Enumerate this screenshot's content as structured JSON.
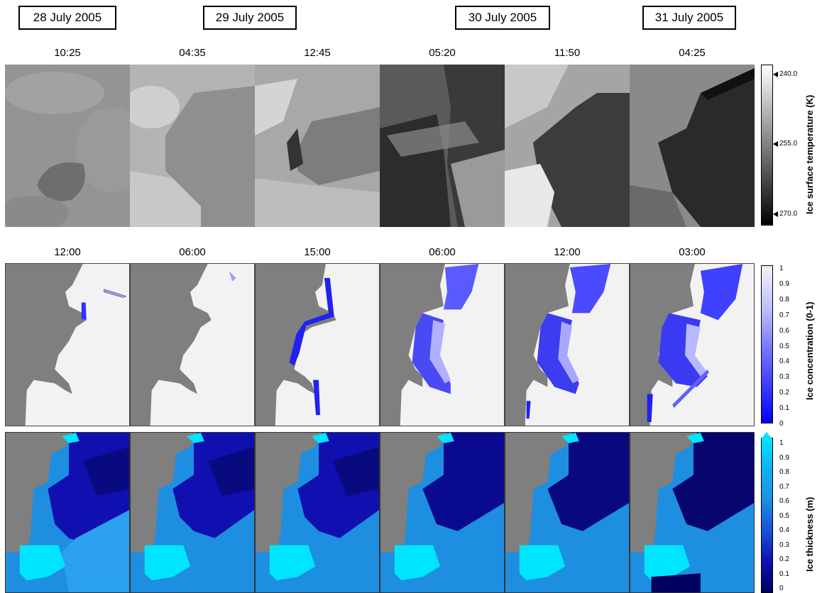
{
  "dates": [
    "28 July 2005",
    "29 July 2005",
    "30 July 2005",
    "31 July 2005"
  ],
  "row1_times": [
    "10:25",
    "04:35",
    "12:45",
    "05:20",
    "11:50",
    "04:25"
  ],
  "row2_times": [
    "12:00",
    "06:00",
    "15:00",
    "06:00",
    "12:00",
    "03:00"
  ],
  "colorbars": {
    "temperature": {
      "title": "Ice surface temperature (K)",
      "ticks": [
        "240.0",
        "255.0",
        "270.0"
      ]
    },
    "concentration": {
      "title": "Ice concentration (0-1)",
      "ticks": [
        "1",
        "0.9",
        "0.8",
        "0.7",
        "0.6",
        "0.5",
        "0.4",
        "0.3",
        "0.2",
        "0.1",
        "0"
      ]
    },
    "thickness": {
      "title": "Ice thickness (m)",
      "ticks": [
        "1",
        "0.9",
        "0.8",
        "0.7",
        "0.6",
        "0.5",
        "0.4",
        "0.3",
        "0.2",
        "0.1",
        "0"
      ]
    }
  },
  "colors": {
    "land": "#7f7f7f",
    "ice": "#f2f2f2",
    "conc_low": "#1a1aff",
    "thick_low": "#000066",
    "thick_high": "#00e5ff"
  }
}
